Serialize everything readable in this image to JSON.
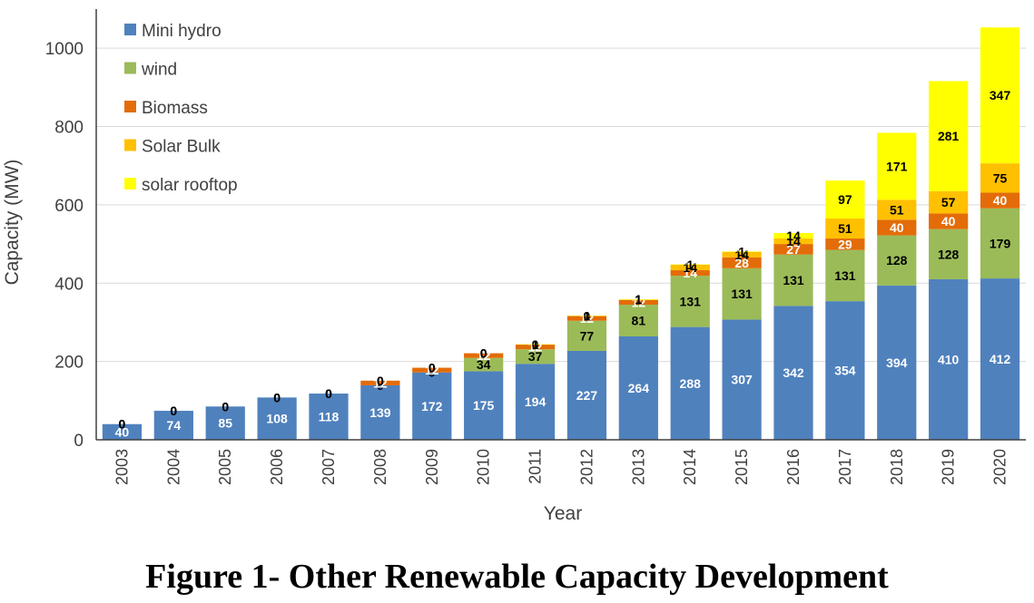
{
  "figure": {
    "caption": "Figure 1- Other Renewable Capacity Development"
  },
  "chart_data": {
    "type": "bar",
    "stacked": true,
    "title": "",
    "xlabel": "Year",
    "ylabel": "Capacity (MW)",
    "ylim": [
      0,
      1100
    ],
    "yticks": [
      0,
      200,
      400,
      600,
      800,
      1000
    ],
    "grid": true,
    "legend_position": "top-left",
    "categories": [
      "2003",
      "2004",
      "2005",
      "2006",
      "2007",
      "2008",
      "2009",
      "2010",
      "2011",
      "2012",
      "2013",
      "2014",
      "2015",
      "2016",
      "2017",
      "2018",
      "2019",
      "2020"
    ],
    "series": [
      {
        "name": "Mini hydro",
        "color": "#4f81bd",
        "label_color": "#ffffff",
        "values": [
          40,
          74,
          85,
          108,
          118,
          139,
          172,
          175,
          194,
          227,
          264,
          288,
          307,
          342,
          354,
          394,
          410,
          412
        ]
      },
      {
        "name": "wind",
        "color": "#9bbb59",
        "label_color": "#000000",
        "values": [
          0,
          0,
          0,
          0,
          0,
          0,
          0,
          34,
          37,
          77,
          81,
          131,
          131,
          131,
          131,
          128,
          128,
          179
        ]
      },
      {
        "name": "Biomass",
        "color": "#e36c09",
        "label_color": "#ffffff",
        "values": [
          0,
          0,
          0,
          0,
          0,
          12,
          12,
          12,
          12,
          12,
          12,
          14,
          28,
          27,
          29,
          40,
          40,
          40
        ]
      },
      {
        "name": "Solar Bulk",
        "color": "#ffc000",
        "label_color": "#000000",
        "values": [
          0,
          0,
          0,
          0,
          0,
          0,
          0,
          0,
          0,
          0,
          1,
          14,
          14,
          14,
          51,
          51,
          57,
          75
        ]
      },
      {
        "name": "solar rooftop",
        "color": "#ffff00",
        "label_color": "#000000",
        "values": [
          0,
          0,
          0,
          0,
          0,
          0,
          0,
          0,
          1,
          1,
          1,
          1,
          1,
          14,
          97,
          171,
          281,
          347
        ]
      }
    ]
  }
}
